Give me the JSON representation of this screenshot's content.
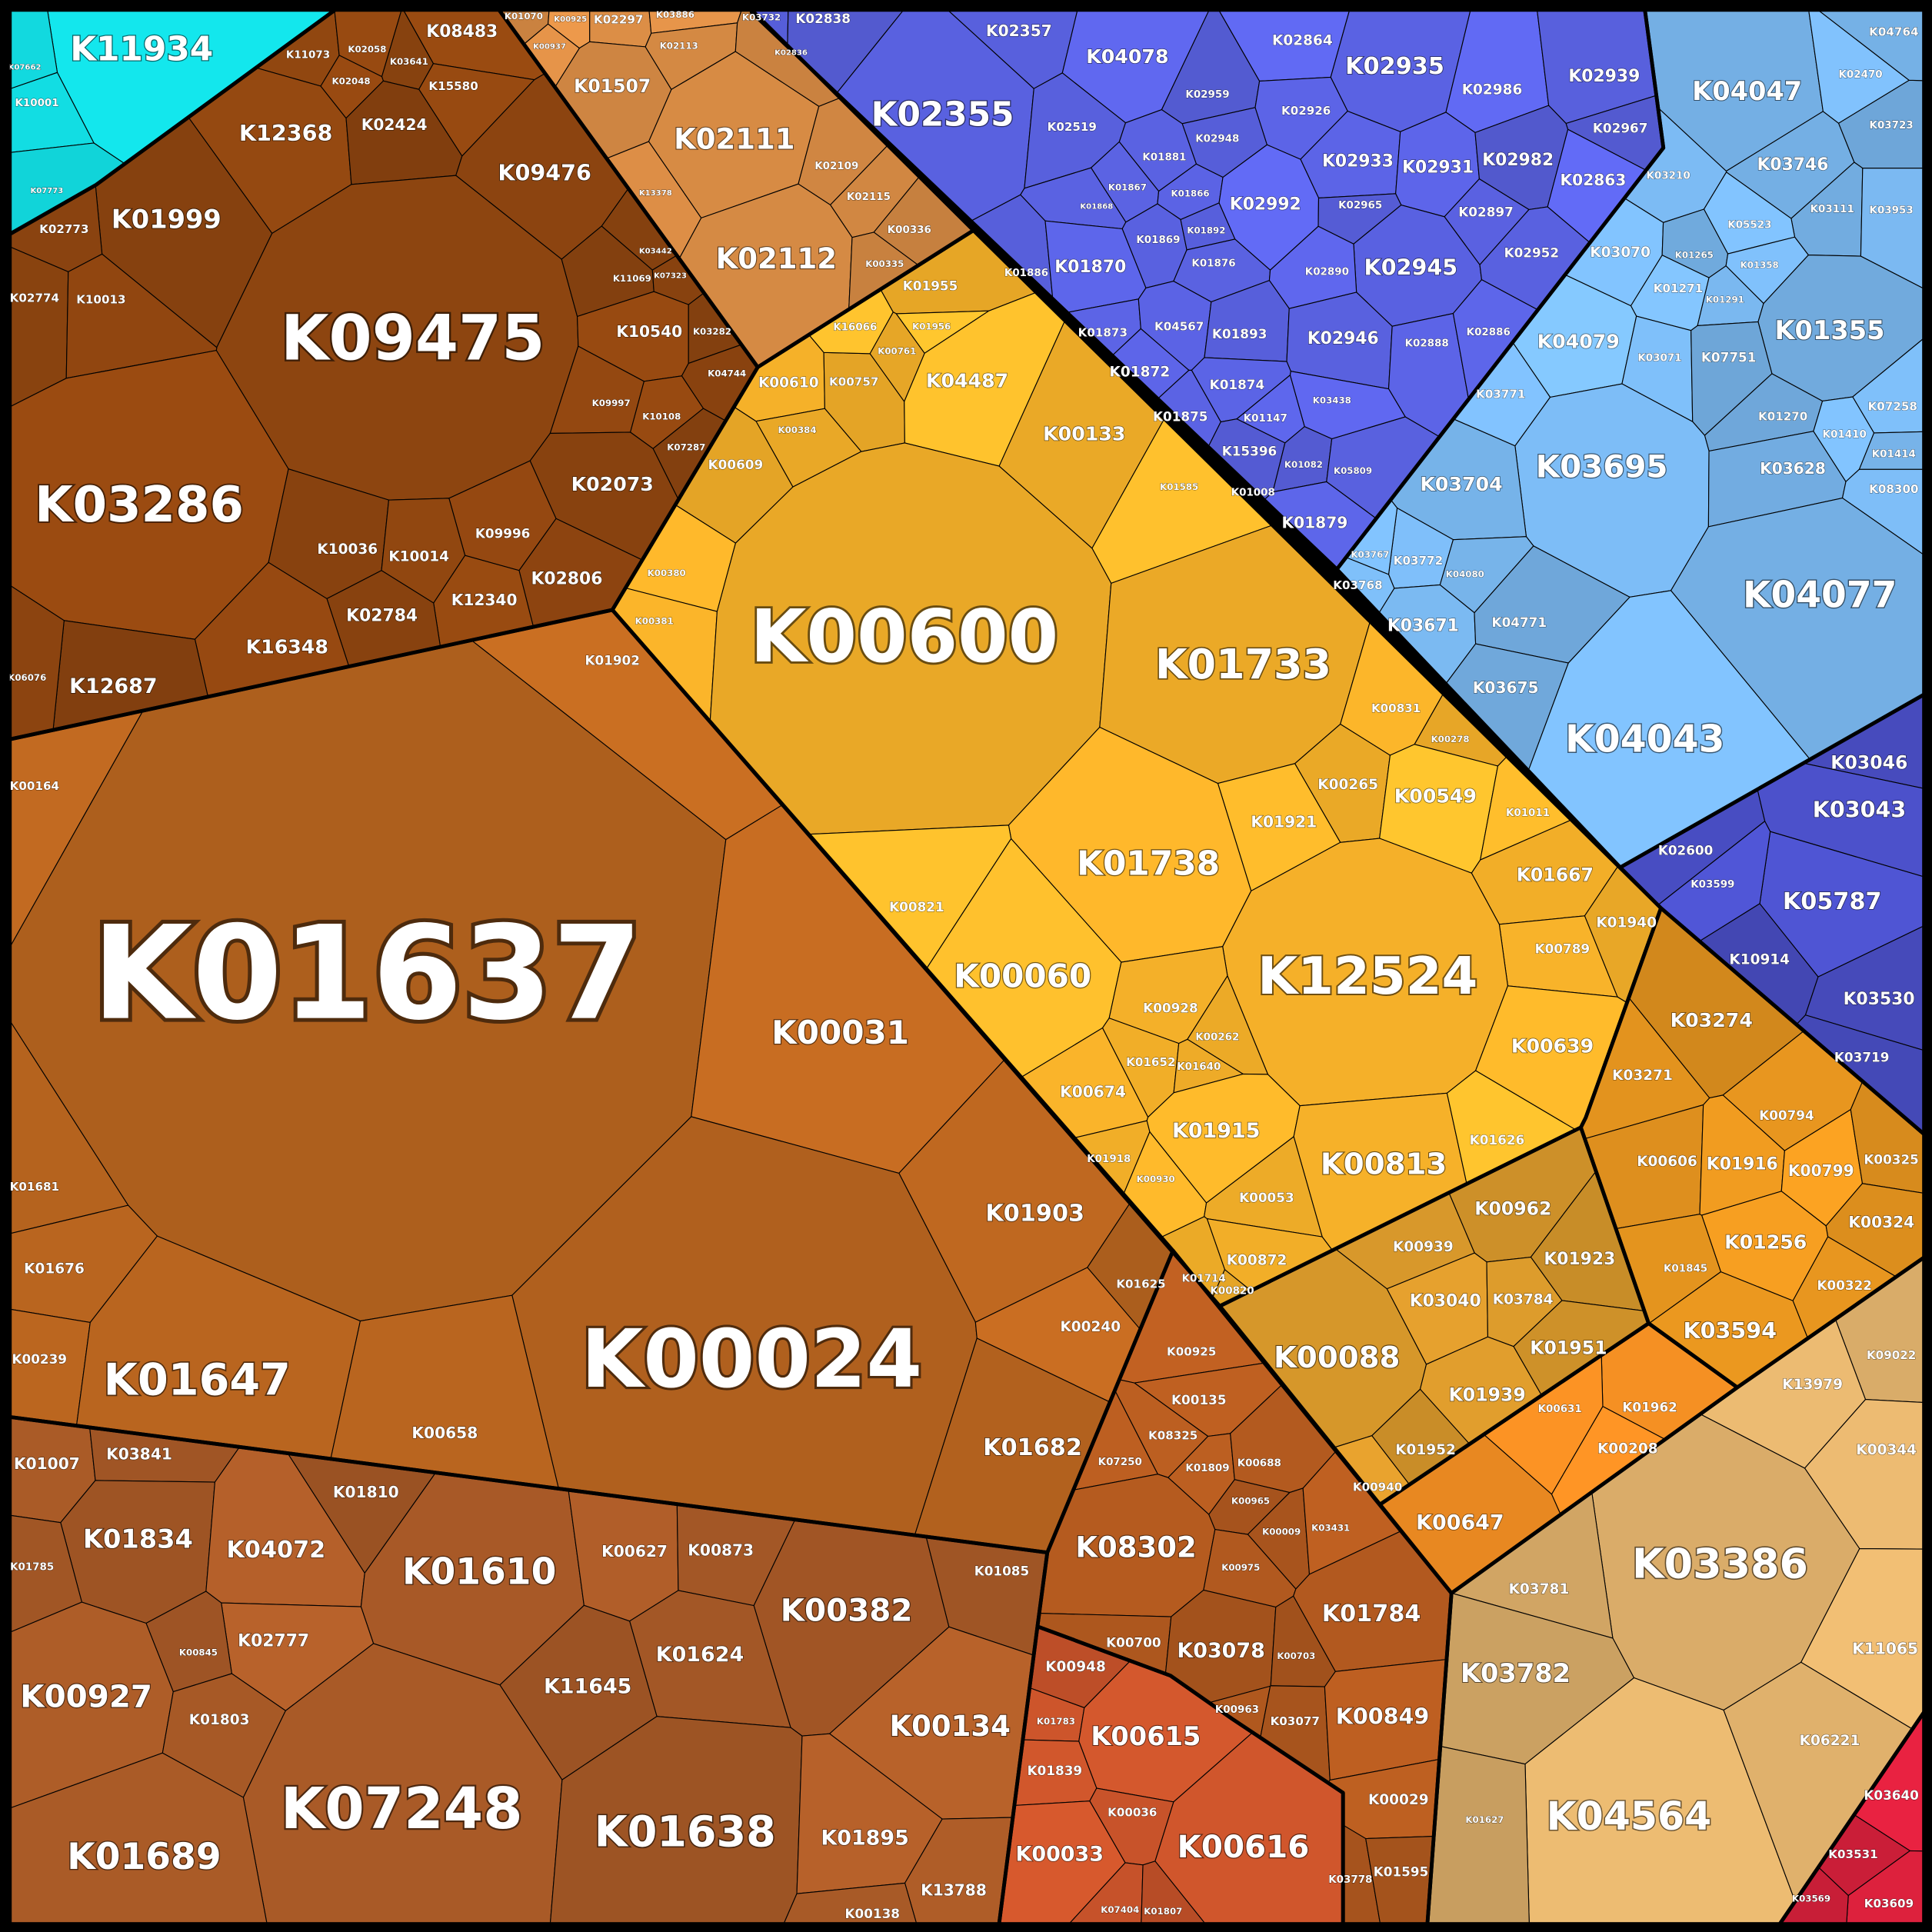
{
  "palette": {
    "cyan": "#12dde3",
    "darkbrown": "#8e4510",
    "tan": "#d98c45",
    "blue": "#5a62e2",
    "lightblue": "#7ab8f0",
    "indigo": "#4a4fc6",
    "yellow": "#fbb52a",
    "golden": "#d4952a",
    "orange": "#e8961f",
    "brightorange": "#ec8a22",
    "bigbrown": "#b9651f",
    "bottombrown": "#a95a27",
    "mid": "#b35a1f",
    "midred": "#c8532a",
    "tanbr": "#dcae6a",
    "red": "#d8203c",
    "border": "#000000",
    "label": "#ffffff"
  },
  "cells": [
    "K11934",
    "K10001",
    "K07662",
    "K07773",
    "K08483",
    "K11073",
    "K02058",
    "K03641",
    "K12368",
    "K02048",
    "K15580",
    "K02424",
    "K09476",
    "K01999",
    "K02773",
    "K09475",
    "K02774",
    "K10013",
    "K03286",
    "K10540",
    "K03282",
    "K11069",
    "K07323",
    "K03442",
    "K04744",
    "K09997",
    "K10108",
    "K07287",
    "K02073",
    "K09996",
    "K10036",
    "K10014",
    "K02806",
    "K12340",
    "K02784",
    "K16348",
    "K12687",
    "K06076",
    "K01070",
    "K00925",
    "K02297",
    "K03886",
    "K01507",
    "K02113",
    "K02111",
    "K00937",
    "K13378",
    "K02109",
    "K02115",
    "K02112",
    "K00336",
    "K00335",
    "K03732",
    "K02838",
    "K02836",
    "K02355",
    "K02357",
    "K04078",
    "K02519",
    "K02959",
    "K02864",
    "K02935",
    "K02926",
    "K02986",
    "K02939",
    "K02948",
    "K02933",
    "K02931",
    "K02982",
    "K02967",
    "K02863",
    "K01881",
    "K01867",
    "K01866",
    "K02992",
    "K02965",
    "K02897",
    "K01868",
    "K01869",
    "K01892",
    "K01886",
    "K01870",
    "K01876",
    "K02945",
    "K02952",
    "K02890",
    "K01873",
    "K04567",
    "K01893",
    "K02946",
    "K02888",
    "K02886",
    "K01872",
    "K01874",
    "K01875",
    "K01147",
    "K15396",
    "K01082",
    "K05809",
    "K01008",
    "K01879",
    "K03438",
    "K04047",
    "K03746",
    "K03723",
    "K02470",
    "K04764",
    "K03210",
    "K03111",
    "K05523",
    "K03953",
    "K03070",
    "K01265",
    "K01358",
    "K01271",
    "K01291",
    "K01355",
    "K04079",
    "K03071",
    "K07751",
    "K03771",
    "K01270",
    "K07258",
    "K03695",
    "K03704",
    "K03628",
    "K01410",
    "K08300",
    "K01414",
    "K03772",
    "K03767",
    "K04080",
    "K03768",
    "K03671",
    "K04771",
    "K03675",
    "K04077",
    "K04043",
    "K03046",
    "K03043",
    "K02600",
    "K05787",
    "K03599",
    "K10914",
    "K03530",
    "K03719",
    "K03274",
    "K03271",
    "K00794",
    "K00606",
    "K01916",
    "K00799",
    "K00325",
    "K01256",
    "K00324",
    "K01845",
    "K00322",
    "K03594",
    "K09022",
    "K13979",
    "K00344",
    "K01962",
    "K00208",
    "K00631",
    "K00647",
    "K03386",
    "K03781",
    "K11065",
    "K03782",
    "K04564",
    "K06221",
    "K01627",
    "K03640",
    "K03531",
    "K03609",
    "K03569",
    "K00610",
    "K00757",
    "K16066",
    "K01955",
    "K00761",
    "K01956",
    "K04487",
    "K00384",
    "K00609",
    "K00133",
    "K01585",
    "K00380",
    "K00381",
    "K01902",
    "K00600",
    "K01733",
    "K00831",
    "K00278",
    "K00265",
    "K00549",
    "K01921",
    "K01011",
    "K01738",
    "K01667",
    "K01940",
    "K00821",
    "K00789",
    "K00060",
    "K12524",
    "K00928",
    "K00262",
    "K01652",
    "K01640",
    "K00639",
    "K00674",
    "K01915",
    "K00813",
    "K01626",
    "K01918",
    "K00930",
    "K00053",
    "K00872",
    "K01714",
    "K00820",
    "K00962",
    "K00939",
    "K01923",
    "K03040",
    "K03784",
    "K00088",
    "K01951",
    "K01939",
    "K01952",
    "K00940",
    "K00164",
    "K01637",
    "K00031",
    "K01681",
    "K01903",
    "K01676",
    "K00024",
    "K00239",
    "K01647",
    "K01625",
    "K00240",
    "K00658",
    "K01682",
    "K01007",
    "K03841",
    "K01810",
    "K01834",
    "K04072",
    "K01610",
    "K01785",
    "K00627",
    "K00873",
    "K00382",
    "K01085",
    "K02777",
    "K01624",
    "K00845",
    "K00927",
    "K11645",
    "K01803",
    "K00134",
    "K07248",
    "K01638",
    "K01895",
    "K01689",
    "K13788",
    "K00138",
    "K00925",
    "K00135",
    "K08325",
    "K07250",
    "K01809",
    "K00688",
    "K08302",
    "K00965",
    "K00009",
    "K00975",
    "K03431",
    "K01784",
    "K00700",
    "K03078",
    "K00703",
    "K00963",
    "K03077",
    "K00849",
    "K00029",
    "K03778",
    "K01595",
    "K00948",
    "K01783",
    "K00615",
    "K01839",
    "K00036",
    "K00616",
    "K00033",
    "K07404",
    "K01807"
  ]
}
